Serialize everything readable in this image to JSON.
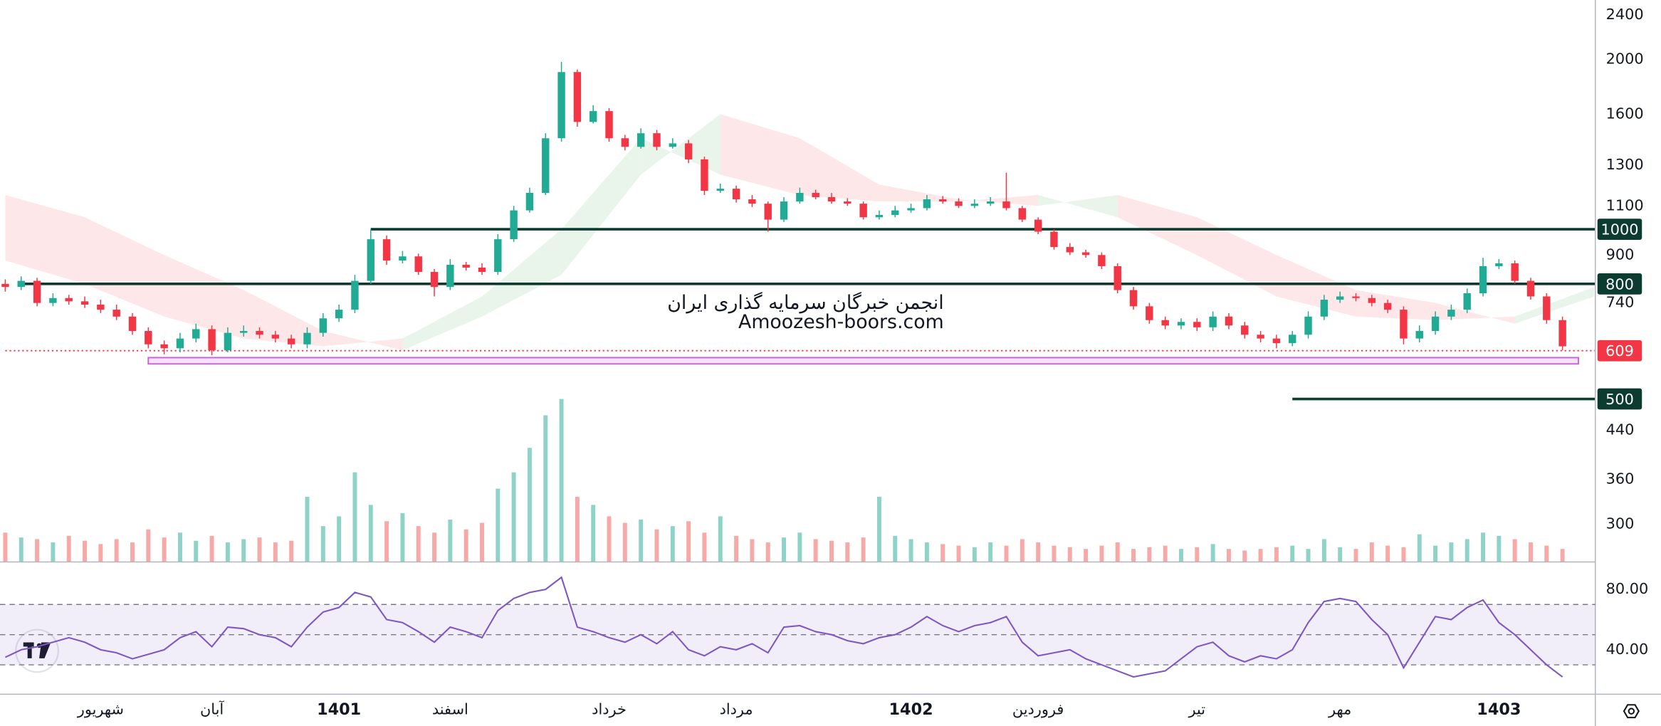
{
  "chart_data": {
    "type": "candlestick",
    "categories": [
      null,
      null,
      null,
      null,
      null,
      null,
      "شهریور",
      null,
      null,
      null,
      null,
      null,
      null,
      "آبان",
      null,
      null,
      null,
      null,
      null,
      null,
      null,
      "1401",
      null,
      null,
      null,
      null,
      null,
      null,
      "اسفند",
      null,
      null,
      null,
      null,
      null,
      null,
      null,
      null,
      null,
      "خرداد",
      null,
      null,
      null,
      null,
      null,
      null,
      null,
      "مرداد",
      null,
      null,
      null,
      null,
      null,
      null,
      null,
      null,
      null,
      null,
      "1402",
      null,
      null,
      null,
      null,
      null,
      null,
      null,
      "فروردین",
      null,
      null,
      null,
      null,
      null,
      null,
      null,
      null,
      null,
      "تیر",
      null,
      null,
      null,
      null,
      null,
      null,
      null,
      null,
      "مهر",
      null,
      null,
      null,
      null,
      null,
      null,
      null,
      null,
      null,
      "1403",
      null,
      null,
      null,
      null
    ],
    "open": [
      800,
      790,
      810,
      740,
      755,
      745,
      735,
      720,
      700,
      660,
      625,
      615,
      640,
      665,
      610,
      655,
      660,
      650,
      640,
      625,
      655,
      695,
      720,
      810,
      960,
      880,
      895,
      840,
      790,
      865,
      855,
      840,
      960,
      1080,
      1160,
      1450,
      1900,
      1550,
      1620,
      1450,
      1400,
      1480,
      1400,
      1420,
      1330,
      1170,
      1180,
      1130,
      1110,
      1040,
      1120,
      1160,
      1140,
      1120,
      1110,
      1050,
      1060,
      1080,
      1090,
      1130,
      1120,
      1100,
      1110,
      1120,
      1090,
      1040,
      990,
      930,
      910,
      900,
      860,
      780,
      730,
      690,
      675,
      685,
      670,
      700,
      675,
      650,
      640,
      628,
      650,
      700,
      750,
      760,
      755,
      740,
      720,
      640,
      660,
      700,
      720,
      770,
      860,
      870,
      810,
      760,
      690
    ],
    "high": [
      815,
      825,
      820,
      770,
      765,
      760,
      750,
      735,
      710,
      670,
      635,
      655,
      680,
      675,
      670,
      675,
      670,
      660,
      650,
      670,
      710,
      735,
      830,
      1000,
      975,
      915,
      905,
      850,
      885,
      875,
      870,
      980,
      1100,
      1185,
      1480,
      1980,
      1920,
      1660,
      1640,
      1470,
      1510,
      1500,
      1450,
      1440,
      1345,
      1205,
      1195,
      1150,
      1120,
      1140,
      1185,
      1175,
      1160,
      1135,
      1120,
      1080,
      1100,
      1110,
      1150,
      1145,
      1135,
      1130,
      1140,
      1260,
      1100,
      1050,
      1000,
      945,
      920,
      910,
      870,
      790,
      740,
      700,
      695,
      695,
      715,
      710,
      685,
      660,
      650,
      660,
      715,
      765,
      775,
      770,
      765,
      750,
      730,
      675,
      715,
      735,
      785,
      890,
      885,
      880,
      820,
      770,
      700
    ],
    "low": [
      775,
      780,
      730,
      730,
      735,
      725,
      710,
      690,
      650,
      615,
      600,
      605,
      630,
      598,
      605,
      645,
      640,
      630,
      615,
      615,
      645,
      685,
      710,
      800,
      865,
      870,
      830,
      760,
      780,
      845,
      830,
      830,
      950,
      1070,
      1150,
      1430,
      1520,
      1540,
      1430,
      1380,
      1390,
      1380,
      1390,
      1310,
      1150,
      1160,
      1115,
      1095,
      990,
      1030,
      1110,
      1130,
      1110,
      1100,
      1040,
      1040,
      1050,
      1070,
      1080,
      1110,
      1090,
      1090,
      1100,
      1080,
      1030,
      980,
      920,
      900,
      890,
      850,
      770,
      720,
      680,
      665,
      665,
      660,
      660,
      665,
      640,
      630,
      615,
      620,
      640,
      690,
      740,
      745,
      730,
      710,
      625,
      630,
      650,
      690,
      710,
      760,
      850,
      800,
      750,
      680,
      610
    ],
    "close": [
      790,
      810,
      740,
      755,
      745,
      735,
      720,
      700,
      660,
      625,
      615,
      640,
      665,
      610,
      655,
      660,
      650,
      640,
      625,
      655,
      695,
      720,
      810,
      960,
      880,
      895,
      840,
      790,
      865,
      855,
      840,
      960,
      1080,
      1160,
      1450,
      1900,
      1550,
      1620,
      1450,
      1400,
      1480,
      1400,
      1420,
      1330,
      1170,
      1180,
      1130,
      1110,
      1040,
      1120,
      1160,
      1140,
      1120,
      1110,
      1050,
      1060,
      1080,
      1090,
      1130,
      1120,
      1100,
      1110,
      1120,
      1090,
      1040,
      990,
      930,
      910,
      900,
      860,
      780,
      730,
      690,
      675,
      685,
      670,
      700,
      675,
      650,
      640,
      628,
      650,
      700,
      750,
      760,
      755,
      740,
      720,
      640,
      660,
      700,
      720,
      770,
      860,
      870,
      810,
      760,
      690,
      620
    ],
    "up_color": "#22ab94",
    "down_color": "#f23645",
    "ylim": [
      257,
      2550
    ],
    "log_scale": true,
    "yticks": [
      2400,
      2000,
      1600,
      1300,
      1100,
      900,
      740,
      440,
      360,
      300
    ],
    "levels": [
      {
        "value": 1000,
        "from": 23,
        "color": "#0c3b2f",
        "style": "solid"
      },
      {
        "value": 800,
        "from": 1,
        "color": "#0c3b2f",
        "style": "solid"
      },
      {
        "value": 500,
        "from": 81,
        "color": "#0c3b2f",
        "style": "solid"
      },
      {
        "value": 609,
        "from": 0,
        "color": "#f23645",
        "style": "dotted"
      }
    ],
    "zone": {
      "low": 577,
      "high": 592,
      "from": 9,
      "to": 99,
      "color": "#d05ce3"
    },
    "cloud": {
      "x": [
        0,
        5,
        10,
        15,
        20,
        25,
        30,
        35,
        40,
        45,
        50,
        55,
        60,
        65,
        70,
        75,
        80,
        85,
        90,
        95,
        100
      ],
      "span_a": [
        880,
        800,
        700,
        640,
        620,
        640,
        760,
        1000,
        1450,
        1250,
        1150,
        1120,
        1120,
        1150,
        1050,
        900,
        760,
        700,
        690,
        700,
        790
      ],
      "span_b": [
        1150,
        1050,
        900,
        780,
        660,
        610,
        700,
        830,
        1250,
        1600,
        1450,
        1200,
        1130,
        1100,
        1150,
        1050,
        900,
        780,
        740,
        680,
        760
      ],
      "up_color": "#4caf50",
      "down_color": "#f23645"
    },
    "volume": {
      "values": [
        18,
        15,
        14,
        12,
        16,
        13,
        11,
        14,
        12,
        20,
        15,
        18,
        13,
        16,
        12,
        14,
        15,
        12,
        13,
        40,
        22,
        28,
        55,
        35,
        25,
        30,
        22,
        18,
        26,
        20,
        24,
        45,
        55,
        70,
        90,
        100,
        40,
        35,
        28,
        24,
        26,
        20,
        22,
        25,
        18,
        28,
        16,
        14,
        12,
        15,
        18,
        14,
        13,
        12,
        15,
        40,
        16,
        14,
        12,
        11,
        10,
        9,
        12,
        10,
        14,
        12,
        10,
        9,
        8,
        10,
        12,
        8,
        9,
        10,
        8,
        9,
        11,
        8,
        7,
        8,
        9,
        10,
        8,
        14,
        9,
        8,
        12,
        10,
        9,
        17,
        10,
        12,
        14,
        18,
        16,
        14,
        12,
        10,
        8
      ],
      "ylim": [
        0,
        100
      ],
      "up_color": "#8fd3c8",
      "down_color": "#f7a9a7"
    },
    "rsi": {
      "values": [
        35,
        40,
        42,
        45,
        48,
        45,
        40,
        38,
        34,
        37,
        40,
        48,
        52,
        42,
        55,
        54,
        50,
        48,
        42,
        55,
        65,
        68,
        78,
        75,
        60,
        58,
        52,
        45,
        55,
        52,
        48,
        66,
        74,
        78,
        80,
        88,
        55,
        52,
        48,
        45,
        50,
        44,
        52,
        40,
        36,
        42,
        40,
        44,
        38,
        55,
        56,
        52,
        50,
        46,
        44,
        48,
        50,
        55,
        62,
        56,
        52,
        56,
        58,
        62,
        45,
        36,
        38,
        40,
        34,
        30,
        26,
        22,
        24,
        26,
        34,
        42,
        45,
        36,
        32,
        36,
        34,
        40,
        58,
        72,
        74,
        72,
        60,
        50,
        28,
        45,
        62,
        60,
        68,
        73,
        58,
        50,
        40,
        30,
        22
      ],
      "ylim": [
        11.2,
        96.8
      ],
      "yticks": [
        {
          "value": 80,
          "label": "80.00"
        },
        {
          "value": 40,
          "label": "40.00"
        }
      ],
      "band": [
        30,
        70
      ],
      "midline": 50,
      "color": "#7e57c2"
    },
    "watermark": [
      "انجمن خبرگان سرمایه گذاری ایران",
      "Amoozesh-boors.com"
    ]
  }
}
